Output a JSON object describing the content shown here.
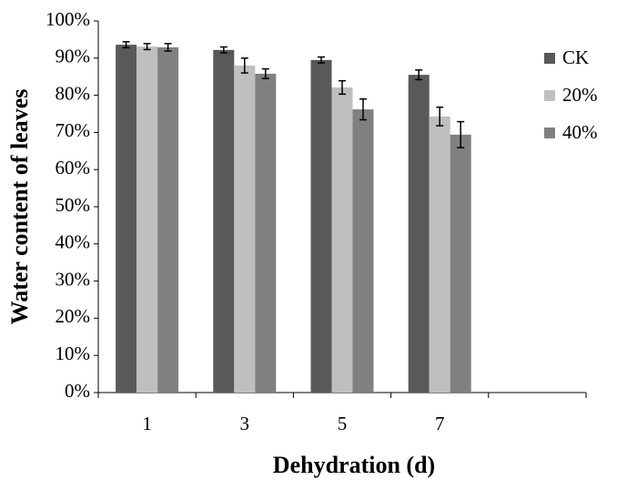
{
  "chart_data": {
    "type": "bar",
    "x_label": "Dehydration (d)",
    "y_label": "Water content of leaves",
    "categories": [
      "1",
      "3",
      "5",
      "7",
      null
    ],
    "series": [
      {
        "name": "CK",
        "color": "#595959",
        "values": [
          93.6,
          92.2,
          89.5,
          85.5,
          null
        ],
        "errors": [
          0.8,
          0.8,
          0.8,
          1.3,
          null
        ]
      },
      {
        "name": "20%",
        "color": "#bfbfbf",
        "values": [
          93.1,
          88.0,
          82.1,
          74.3,
          null
        ],
        "errors": [
          0.8,
          2.0,
          1.8,
          2.5,
          null
        ]
      },
      {
        "name": "40%",
        "color": "#808080",
        "values": [
          92.9,
          85.8,
          76.2,
          69.4,
          null
        ],
        "errors": [
          1.0,
          1.3,
          2.8,
          3.5,
          null
        ]
      }
    ],
    "ylim": [
      0,
      100
    ],
    "yticks": [
      {
        "value": 0,
        "label": "0%"
      },
      {
        "value": 10,
        "label": "10%"
      },
      {
        "value": 20,
        "label": "20%"
      },
      {
        "value": 30,
        "label": "30%"
      },
      {
        "value": 40,
        "label": "40%"
      },
      {
        "value": 50,
        "label": "50%"
      },
      {
        "value": 60,
        "label": "60%"
      },
      {
        "value": 70,
        "label": "70%"
      },
      {
        "value": 80,
        "label": "80%"
      },
      {
        "value": 90,
        "label": "90%"
      },
      {
        "value": 100,
        "label": "100%"
      }
    ],
    "grid": false,
    "legend": "right"
  }
}
